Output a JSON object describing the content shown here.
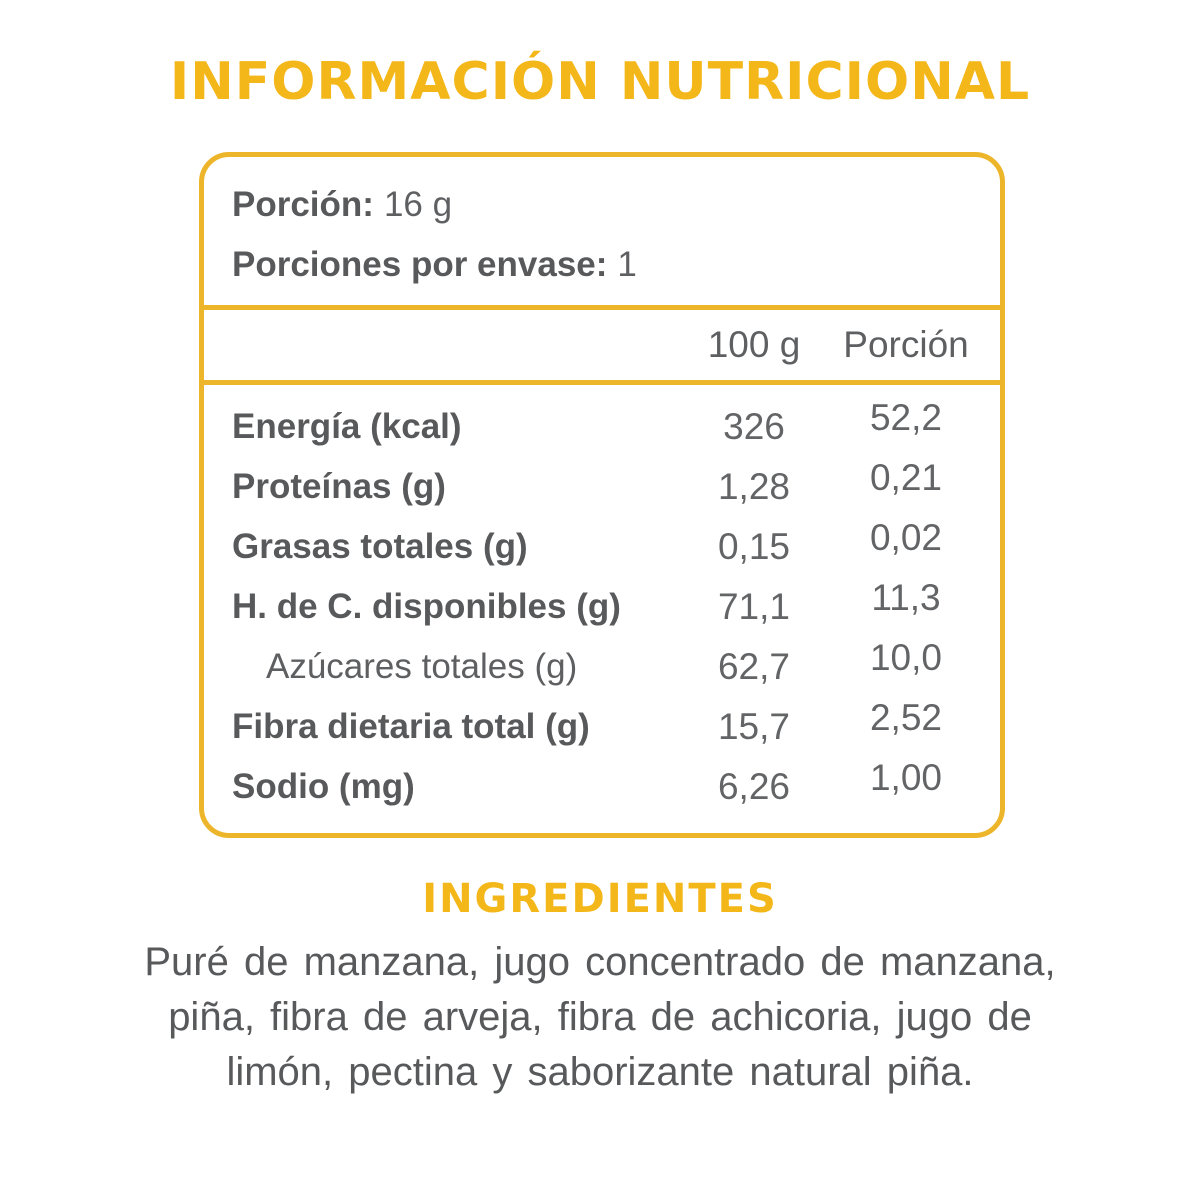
{
  "colors": {
    "accent_yellow": "#F4B719",
    "border_yellow": "#EDB52A",
    "text_dark": "#58595B",
    "text_value": "#636466"
  },
  "title": "INFORMACIÓN NUTRICIONAL",
  "panel": {
    "serving_label": "Porción:",
    "serving_value": "16 g",
    "servings_per_container_label": "Porciones por envase:",
    "servings_per_container_value": "1",
    "columns": [
      "100 g",
      "Porción"
    ],
    "rows": [
      {
        "label": "Energía (kcal)",
        "per100": "326",
        "portion": "52,2"
      },
      {
        "label": "Proteínas (g)",
        "per100": "1,28",
        "portion": "0,21"
      },
      {
        "label": "Grasas totales (g)",
        "per100": "0,15",
        "portion": "0,02"
      },
      {
        "label": "H. de C. disponibles (g)",
        "per100": "71,1",
        "portion": "11,3"
      },
      {
        "label": "Azúcares totales (g)",
        "per100": "62,7",
        "portion": "10,0"
      },
      {
        "label": "Fibra dietaria total (g)",
        "per100": "15,7",
        "portion": "2,52"
      },
      {
        "label": "Sodio (mg)",
        "per100": "6,26",
        "portion": "1,00"
      }
    ]
  },
  "ingredients": {
    "heading": "INGREDIENTES",
    "lines": [
      "Puré de manzana, jugo concentrado de manzana,",
      "piña, fibra de arveja, fibra de achicoria, jugo de",
      "limón, pectina y saborizante natural piña."
    ]
  }
}
